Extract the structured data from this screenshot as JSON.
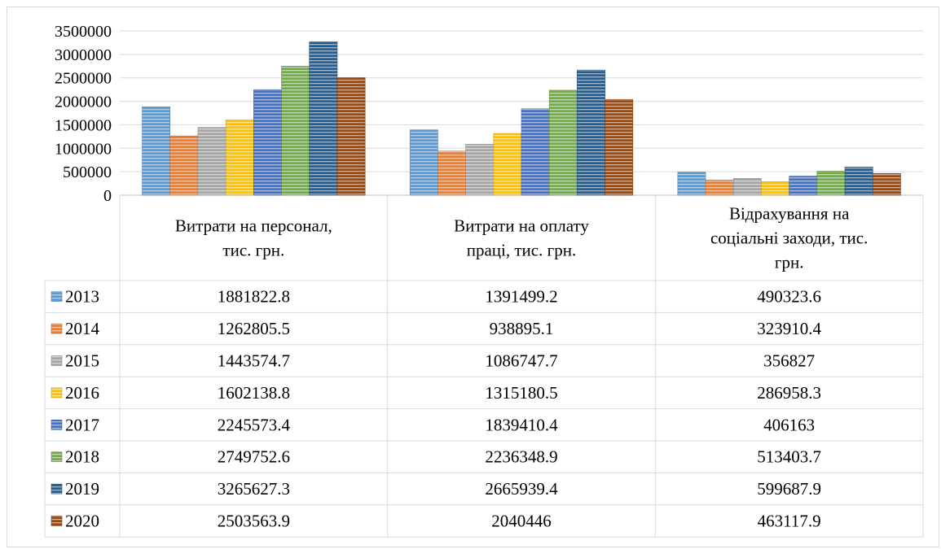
{
  "chart_data": {
    "type": "bar",
    "title": "",
    "xlabel": "",
    "ylabel": "",
    "ylim": [
      0,
      3500000
    ],
    "yticks": [
      0,
      500000,
      1000000,
      1500000,
      2000000,
      2500000,
      3000000,
      3500000
    ],
    "ytick_labels": [
      "0",
      "500000",
      "1000000",
      "1500000",
      "2000000",
      "2500000",
      "3000000",
      "3500000"
    ],
    "grid": true,
    "legend": "data-table",
    "categories": [
      "Витрати на персонал, тис. грн.",
      "Витрати на оплату праці, тис. грн.",
      "Відрахування на соціальні заходи, тис. грн."
    ],
    "category_lines": [
      [
        "Витрати на персонал,",
        "тис. грн."
      ],
      [
        "Витрати на оплату",
        "праці, тис. грн."
      ],
      [
        "Відрахування на",
        "соціальні заходи, тис.",
        "грн."
      ]
    ],
    "series": [
      {
        "name": "2013",
        "color": "#5b9bd5",
        "values": [
          1881822.8,
          1391499.2,
          490323.6
        ],
        "labels": [
          "1881822.8",
          "1391499.2",
          "490323.6"
        ]
      },
      {
        "name": "2014",
        "color": "#ed7d31",
        "values": [
          1262805.5,
          938895.1,
          323910.4
        ],
        "labels": [
          "1262805.5",
          "938895.1",
          "323910.4"
        ]
      },
      {
        "name": "2015",
        "color": "#a5a5a5",
        "values": [
          1443574.7,
          1086747.7,
          356827
        ],
        "labels": [
          "1443574.7",
          "1086747.7",
          "356827"
        ]
      },
      {
        "name": "2016",
        "color": "#ffc000",
        "values": [
          1602138.8,
          1315180.5,
          286958.3
        ],
        "labels": [
          "1602138.8",
          "1315180.5",
          "286958.3"
        ]
      },
      {
        "name": "2017",
        "color": "#4472c4",
        "values": [
          2245573.4,
          1839410.4,
          406163
        ],
        "labels": [
          "2245573.4",
          "1839410.4",
          "406163"
        ]
      },
      {
        "name": "2018",
        "color": "#70ad47",
        "values": [
          2749752.6,
          2236348.9,
          513403.7
        ],
        "labels": [
          "2749752.6",
          "2236348.9",
          "513403.7"
        ]
      },
      {
        "name": "2019",
        "color": "#255e91",
        "values": [
          3265627.3,
          2665939.4,
          599687.9
        ],
        "labels": [
          "3265627.3",
          "2665939.4",
          "599687.9"
        ]
      },
      {
        "name": "2020",
        "color": "#9e480e",
        "values": [
          2503563.9,
          2040446,
          463117.9
        ],
        "labels": [
          "2503563.9",
          "2040446",
          "463117.9"
        ]
      }
    ]
  }
}
